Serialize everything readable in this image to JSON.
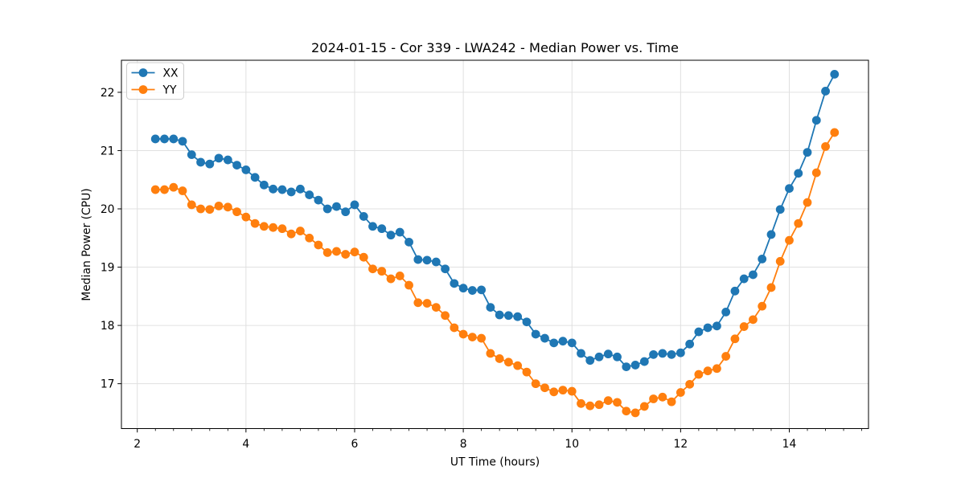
{
  "chart_data": {
    "type": "line",
    "title": "2024-01-15 - Cor 339 - LWA242 - Median Power vs. Time",
    "xlabel": "UT Time (hours)",
    "ylabel": "Median Power (CPU)",
    "xlim": [
      1.708,
      15.458
    ],
    "ylim": [
      16.23,
      22.55
    ],
    "x_ticks": [
      2,
      4,
      6,
      8,
      10,
      12,
      14
    ],
    "y_ticks": [
      17,
      18,
      19,
      20,
      21,
      22
    ],
    "x_minor_tick_interval": 0.33333,
    "grid": true,
    "grid_color": "#e0e0e0",
    "spine_color": "#000000",
    "legend_position": "upper left",
    "background_color": "#ffffff",
    "x": [
      2.333,
      2.5,
      2.667,
      2.833,
      3,
      3.167,
      3.333,
      3.5,
      3.667,
      3.833,
      4,
      4.167,
      4.333,
      4.5,
      4.667,
      4.833,
      5,
      5.167,
      5.333,
      5.5,
      5.667,
      5.833,
      6,
      6.167,
      6.333,
      6.5,
      6.667,
      6.833,
      7,
      7.167,
      7.333,
      7.5,
      7.667,
      7.833,
      8,
      8.167,
      8.333,
      8.5,
      8.667,
      8.833,
      9,
      9.167,
      9.333,
      9.5,
      9.667,
      9.833,
      10,
      10.167,
      10.333,
      10.5,
      10.667,
      10.833,
      11,
      11.167,
      11.333,
      11.5,
      11.667,
      11.833,
      12,
      12.167,
      12.333,
      12.5,
      12.667,
      12.833,
      13,
      13.167,
      13.333,
      13.5,
      13.667,
      13.833,
      14,
      14.167,
      14.333,
      14.5,
      14.667,
      14.833
    ],
    "series": [
      {
        "name": "XX",
        "color": "#1f77b4",
        "values": [
          21.2,
          21.2,
          21.2,
          21.16,
          20.93,
          20.8,
          20.77,
          20.87,
          20.84,
          20.75,
          20.67,
          20.54,
          20.41,
          20.34,
          20.33,
          20.29,
          20.34,
          20.24,
          20.15,
          20.0,
          20.04,
          19.95,
          20.07,
          19.87,
          19.7,
          19.66,
          19.55,
          19.6,
          19.43,
          19.13,
          19.12,
          19.09,
          18.97,
          18.72,
          18.64,
          18.6,
          18.61,
          18.31,
          18.18,
          18.17,
          18.15,
          18.06,
          17.85,
          17.78,
          17.7,
          17.73,
          17.7,
          17.52,
          17.4,
          17.46,
          17.51,
          17.46,
          17.29,
          17.32,
          17.38,
          17.5,
          17.52,
          17.5,
          17.53,
          17.68,
          17.89,
          17.96,
          17.99,
          18.23,
          18.59,
          18.8,
          18.87,
          19.14,
          19.56,
          19.99,
          20.35,
          20.61,
          20.97,
          21.52,
          22.02,
          22.31
        ]
      },
      {
        "name": "YY",
        "color": "#ff7f0e",
        "values": [
          20.33,
          20.33,
          20.37,
          20.31,
          20.07,
          20.0,
          19.99,
          20.05,
          20.03,
          19.95,
          19.86,
          19.75,
          19.7,
          19.68,
          19.66,
          19.57,
          19.62,
          19.5,
          19.38,
          19.25,
          19.27,
          19.22,
          19.26,
          19.17,
          18.97,
          18.93,
          18.8,
          18.85,
          18.69,
          18.39,
          18.38,
          18.31,
          18.17,
          17.96,
          17.85,
          17.8,
          17.78,
          17.52,
          17.43,
          17.37,
          17.31,
          17.2,
          17.0,
          16.93,
          16.86,
          16.89,
          16.87,
          16.66,
          16.62,
          16.64,
          16.71,
          16.68,
          16.53,
          16.5,
          16.61,
          16.74,
          16.77,
          16.69,
          16.85,
          16.99,
          17.16,
          17.22,
          17.26,
          17.47,
          17.77,
          17.98,
          18.1,
          18.33,
          18.65,
          19.1,
          19.46,
          19.75,
          20.11,
          20.62,
          21.07,
          21.31
        ]
      }
    ]
  }
}
